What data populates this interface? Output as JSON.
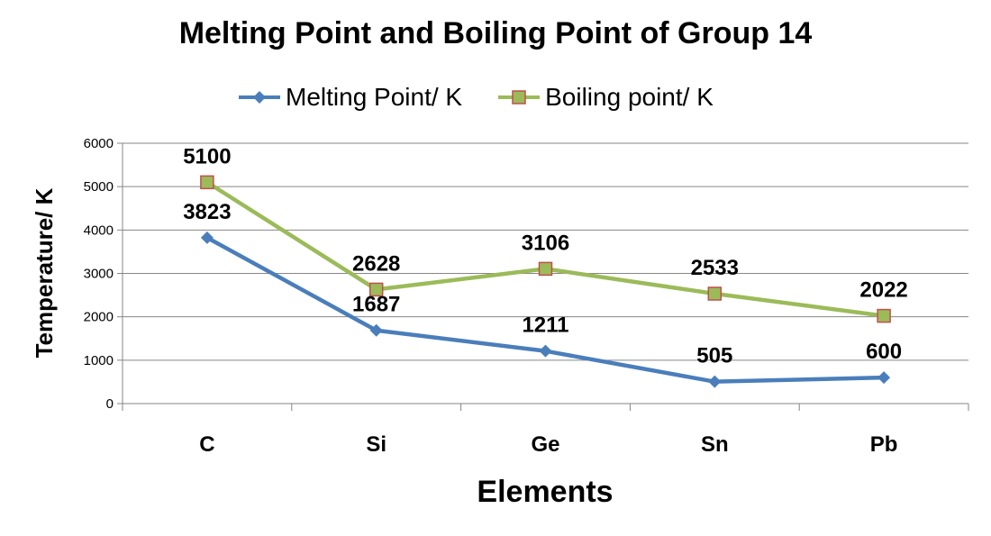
{
  "chart_data": {
    "type": "line",
    "title": "Melting Point and Boiling Point of Group 14",
    "xlabel": "Elements",
    "ylabel": "Temperature/ K",
    "categories": [
      "C",
      "Si",
      "Ge",
      "Sn",
      "Pb"
    ],
    "ylim": [
      0,
      6000
    ],
    "yticks": [
      0,
      1000,
      2000,
      3000,
      4000,
      5000,
      6000
    ],
    "grid": true,
    "legend_position": "top",
    "series": [
      {
        "name": "Melting Point/ K",
        "values": [
          3823,
          1687,
          1211,
          505,
          600
        ],
        "color": "#4a7ebb",
        "marker": "diamond"
      },
      {
        "name": "Boiling point/ K",
        "values": [
          5100,
          2628,
          3106,
          2533,
          2022
        ],
        "color": "#9bbb59",
        "marker": "square",
        "marker_edge": "#c0504d"
      }
    ]
  }
}
